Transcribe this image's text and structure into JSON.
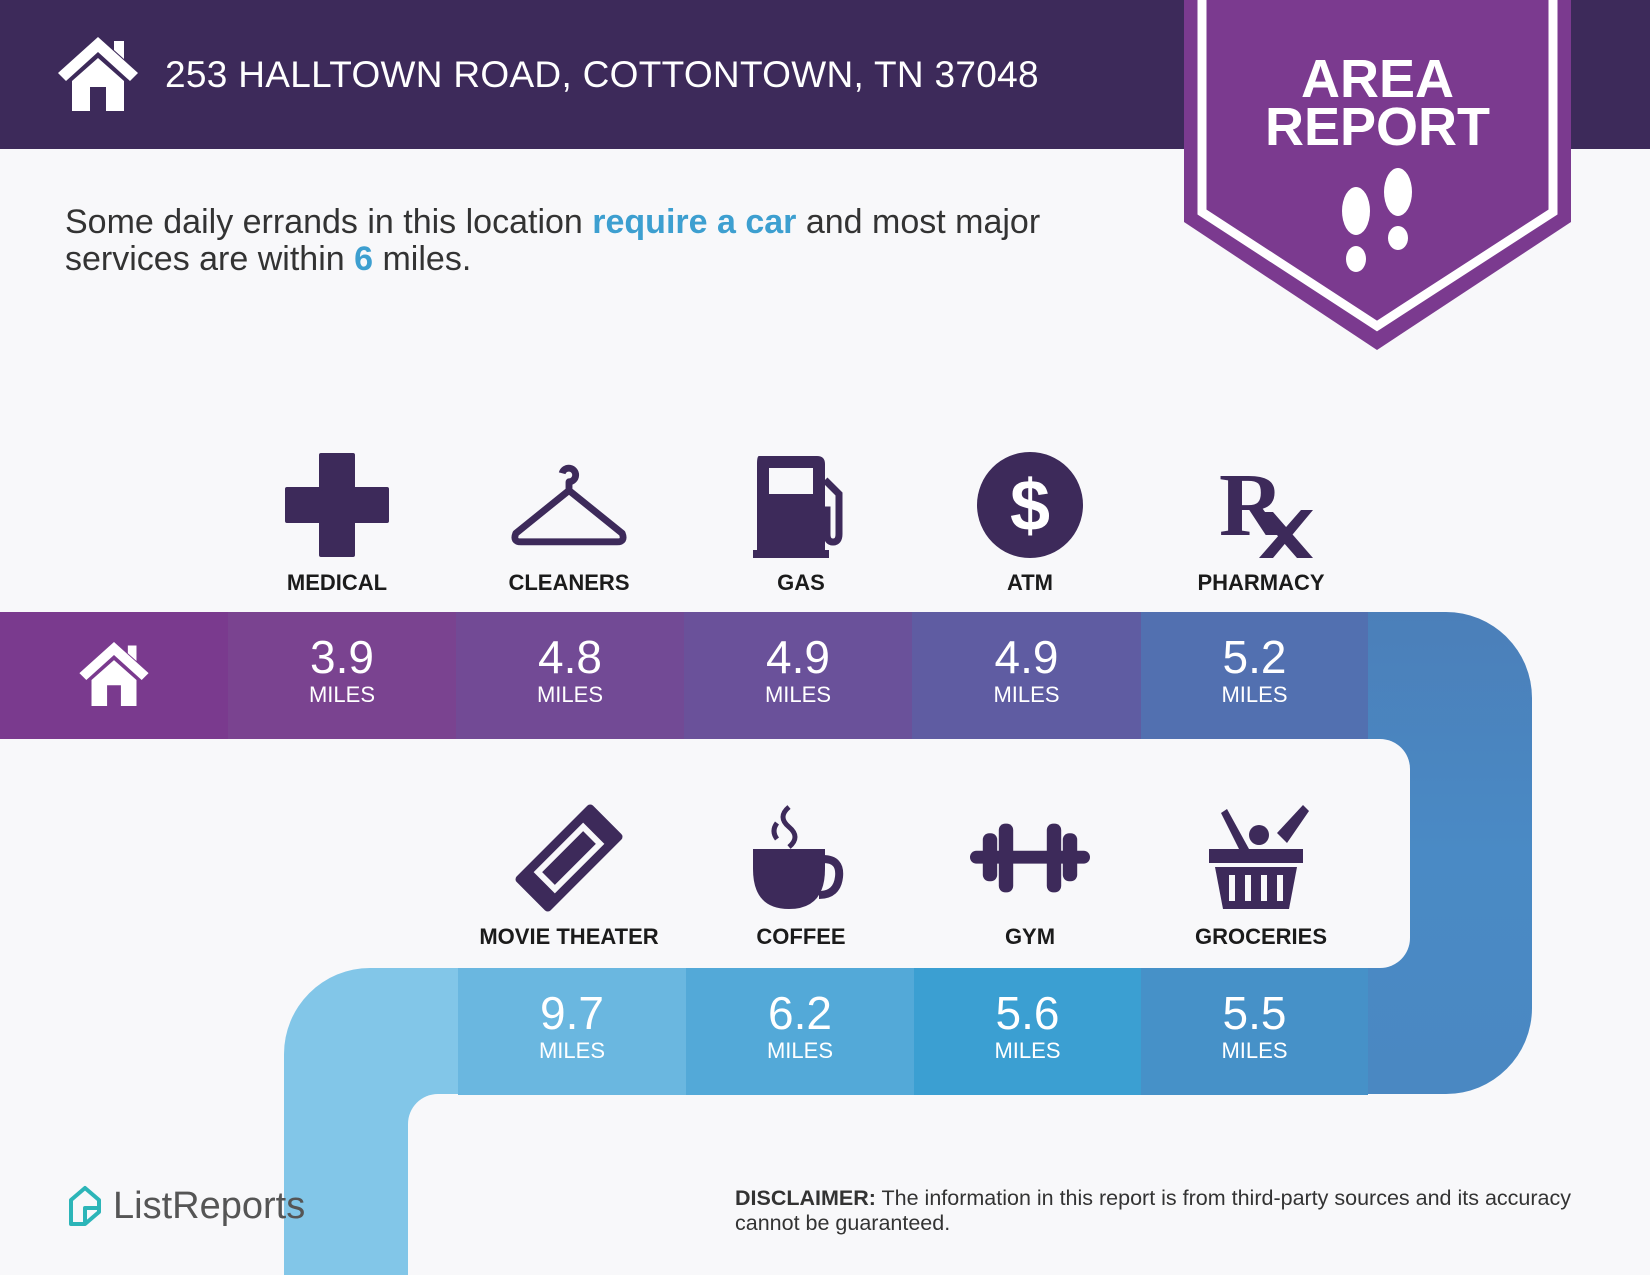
{
  "header": {
    "address": "253 HALLTOWN ROAD, COTTONTOWN, TN 37048",
    "icon": "home-icon"
  },
  "badge": {
    "line1": "AREA",
    "line2": "REPORT",
    "icon": "footprints-icon",
    "color": "#7b3a8f"
  },
  "intro": {
    "part1": "Some daily errands in this location ",
    "highlight1": "require a car",
    "part2": " and most major services are within ",
    "highlight2": "6",
    "part3": " miles."
  },
  "row1": [
    {
      "label": "MEDICAL",
      "value": "3.9",
      "unit": "MILES",
      "icon": "medical-cross-icon",
      "color": "#7a4390"
    },
    {
      "label": "CLEANERS",
      "value": "4.8",
      "unit": "MILES",
      "icon": "hanger-icon",
      "color": "#724a95"
    },
    {
      "label": "GAS",
      "value": "4.9",
      "unit": "MILES",
      "icon": "gas-pump-icon",
      "color": "#6a519a"
    },
    {
      "label": "ATM",
      "value": "4.9",
      "unit": "MILES",
      "icon": "dollar-icon",
      "color": "#5f5ca2"
    },
    {
      "label": "PHARMACY",
      "value": "5.2",
      "unit": "MILES",
      "icon": "rx-icon",
      "color": "#5270b0"
    }
  ],
  "row2": [
    {
      "label": "MOVIE THEATER",
      "value": "9.7",
      "unit": "MILES",
      "icon": "ticket-icon",
      "color": "#6ab7e0"
    },
    {
      "label": "COFFEE",
      "value": "6.2",
      "unit": "MILES",
      "icon": "coffee-cup-icon",
      "color": "#53a9d8"
    },
    {
      "label": "GYM",
      "value": "5.6",
      "unit": "MILES",
      "icon": "dumbbell-icon",
      "color": "#3b9fd2"
    },
    {
      "label": "GROCERIES",
      "value": "5.5",
      "unit": "MILES",
      "icon": "grocery-basket-icon",
      "color": "#4691c8"
    }
  ],
  "footer": {
    "brand": "ListReports",
    "disclaimer_label": "DISCLAIMER:",
    "disclaimer_text": " The information in this report is from third-party sources and its accuracy cannot be guaranteed."
  }
}
